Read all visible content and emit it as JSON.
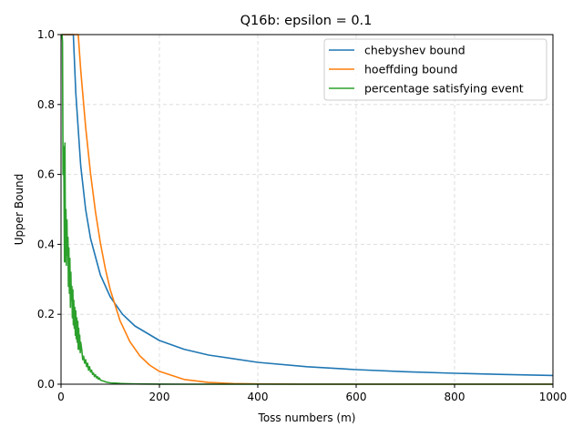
{
  "chart_data": {
    "type": "line",
    "title": "Q16b: epsilon = 0.1",
    "xlabel": "Toss numbers (m)",
    "ylabel": "Upper Bound",
    "xlim": [
      0,
      1000
    ],
    "ylim": [
      0,
      1.0
    ],
    "xticks": [
      0,
      200,
      400,
      600,
      800,
      1000
    ],
    "yticks": [
      0.0,
      0.2,
      0.4,
      0.6,
      0.8,
      1.0
    ],
    "xtick_labels": [
      "0",
      "200",
      "400",
      "600",
      "800",
      "1000"
    ],
    "ytick_labels": [
      "0.0",
      "0.2",
      "0.4",
      "0.6",
      "0.8",
      "1.0"
    ],
    "grid": true,
    "legend_position": "top-right",
    "series": [
      {
        "name": "chebyshev bound",
        "color": "#1f77b4",
        "x": [
          1,
          10,
          20,
          25,
          30,
          40,
          50,
          60,
          80,
          100,
          125,
          150,
          200,
          250,
          300,
          400,
          500,
          600,
          700,
          800,
          900,
          1000
        ],
        "values": [
          1.0,
          1.0,
          1.0,
          1.0,
          0.8333,
          0.625,
          0.5,
          0.4167,
          0.3125,
          0.25,
          0.2,
          0.1667,
          0.125,
          0.1,
          0.0833,
          0.0625,
          0.05,
          0.0417,
          0.0357,
          0.0313,
          0.0278,
          0.025
        ]
      },
      {
        "name": "hoeffding bound",
        "color": "#ff7f0e",
        "x": [
          1,
          10,
          20,
          30,
          35,
          40,
          50,
          60,
          70,
          80,
          90,
          100,
          120,
          140,
          160,
          180,
          200,
          250,
          300,
          350,
          400,
          500,
          600,
          800,
          1000
        ],
        "values": [
          1.0,
          1.0,
          1.0,
          1.0,
          1.0,
          0.8987,
          0.7358,
          0.6024,
          0.4932,
          0.4038,
          0.3306,
          0.2707,
          0.1814,
          0.1216,
          0.0815,
          0.0546,
          0.0366,
          0.0135,
          0.005,
          0.0018,
          0.0007,
          0.0001,
          0.0,
          0.0,
          0.0
        ]
      },
      {
        "name": "percentage satisfying event",
        "color": "#2ca02c",
        "x": [
          1,
          2,
          3,
          4,
          5,
          6,
          7,
          8,
          9,
          10,
          11,
          12,
          13,
          14,
          15,
          16,
          17,
          18,
          19,
          20,
          21,
          22,
          23,
          24,
          25,
          26,
          27,
          28,
          29,
          30,
          31,
          32,
          33,
          34,
          35,
          36,
          37,
          38,
          39,
          40,
          42,
          44,
          46,
          48,
          50,
          52,
          54,
          56,
          58,
          60,
          62,
          64,
          66,
          68,
          70,
          72,
          74,
          76,
          78,
          80,
          84,
          88,
          92,
          96,
          100,
          110,
          120,
          130,
          140,
          150,
          170,
          200,
          250,
          300,
          400,
          500,
          600,
          800,
          1000
        ],
        "values": [
          1.0,
          1.0,
          0.98,
          0.6,
          0.68,
          0.58,
          0.35,
          0.69,
          0.35,
          0.5,
          0.34,
          0.47,
          0.37,
          0.42,
          0.28,
          0.39,
          0.26,
          0.36,
          0.22,
          0.32,
          0.24,
          0.28,
          0.19,
          0.27,
          0.17,
          0.24,
          0.16,
          0.22,
          0.14,
          0.21,
          0.13,
          0.19,
          0.12,
          0.18,
          0.1,
          0.16,
          0.1,
          0.14,
          0.09,
          0.12,
          0.1,
          0.07,
          0.08,
          0.06,
          0.07,
          0.05,
          0.06,
          0.04,
          0.05,
          0.035,
          0.04,
          0.028,
          0.032,
          0.022,
          0.027,
          0.018,
          0.022,
          0.014,
          0.018,
          0.012,
          0.01,
          0.008,
          0.006,
          0.005,
          0.004,
          0.003,
          0.002,
          0.0015,
          0.001,
          0.0008,
          0.0004,
          0.0002,
          0.0,
          0.0,
          0.0,
          0.0,
          0.0,
          0.0,
          0.0
        ]
      }
    ]
  }
}
